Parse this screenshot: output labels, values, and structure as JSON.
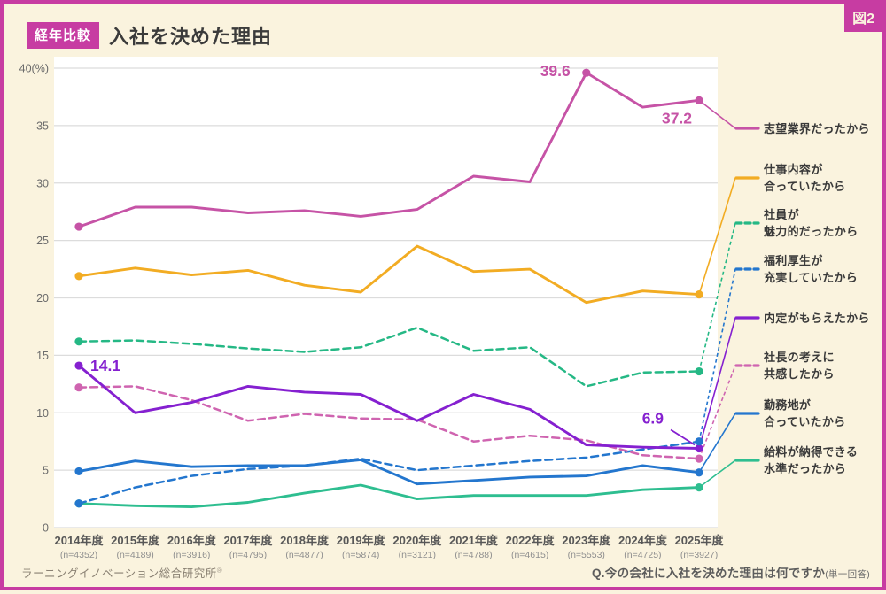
{
  "figure_label": "図2",
  "header": {
    "badge": "経年比較",
    "title": "入社を決めた理由"
  },
  "footer": {
    "source": "ラーニングイノベーション総合研究所",
    "source_mark": "®",
    "question": "Q.今の会社に入社を決めた理由は何ですか",
    "question_note": "(単一回答)"
  },
  "colors": {
    "border": "#C73CA2",
    "background": "#FAF3DE",
    "plot_background": "#FFFFFF",
    "gridline": "#DCDCDC",
    "axis_text": "#6B6B6B",
    "xaxis_text": "#575757",
    "n_text": "#8F8F8F"
  },
  "chart_data": {
    "type": "line",
    "title": "入社を決めた理由（経年比較）",
    "unit": "%",
    "ylim": [
      0,
      40
    ],
    "yticks": [
      0,
      5,
      10,
      15,
      20,
      25,
      30,
      35
    ],
    "ytick_top_label": "40(%)",
    "grid": "horizontal",
    "legend_position": "right",
    "categories": [
      "2014年度",
      "2015年度",
      "2016年度",
      "2017年度",
      "2018年度",
      "2019年度",
      "2020年度",
      "2021年度",
      "2022年度",
      "2023年度",
      "2024年度",
      "2025年度"
    ],
    "sample_sizes": [
      "(n=4352)",
      "(n=4189)",
      "(n=3916)",
      "(n=4795)",
      "(n=4877)",
      "(n=5874)",
      "(n=3121)",
      "(n=4788)",
      "(n=4615)",
      "(n=5553)",
      "(n=4725)",
      "(n=3927)"
    ],
    "series": [
      {
        "name": "志望業界だったから",
        "legend_lines": [
          "志望業界だったから"
        ],
        "color": "#C653A6",
        "dashed": false,
        "values": [
          26.2,
          27.9,
          27.9,
          27.4,
          27.6,
          27.1,
          27.7,
          30.6,
          30.1,
          39.6,
          36.6,
          37.2
        ],
        "annotations": [
          {
            "index": 9,
            "text": "39.6",
            "dx": -18,
            "dy": 4,
            "anchor": "end"
          },
          {
            "index": 11,
            "text": "37.2",
            "dx": -8,
            "dy": 26,
            "anchor": "end"
          }
        ]
      },
      {
        "name": "仕事内容が合っていたから",
        "legend_lines": [
          "仕事内容が",
          "合っていたから"
        ],
        "color": "#F2AC23",
        "dashed": false,
        "values": [
          21.9,
          22.6,
          22.0,
          22.4,
          21.1,
          20.5,
          24.5,
          22.3,
          22.5,
          19.6,
          20.6,
          20.3
        ],
        "annotations": []
      },
      {
        "name": "社員が魅力的だったから",
        "legend_lines": [
          "社員が",
          "魅力的だったから"
        ],
        "color": "#25B885",
        "dashed": true,
        "values": [
          16.2,
          16.3,
          16.0,
          15.6,
          15.3,
          15.7,
          17.4,
          15.4,
          15.7,
          12.3,
          13.5,
          13.6
        ],
        "annotations": []
      },
      {
        "name": "福利厚生が充実していたから",
        "legend_lines": [
          "福利厚生が",
          "充実していたから"
        ],
        "color": "#2376CE",
        "dashed": true,
        "values": [
          2.1,
          3.5,
          4.5,
          5.1,
          5.4,
          6.0,
          5.0,
          5.4,
          5.8,
          6.1,
          6.8,
          7.5
        ],
        "annotations": []
      },
      {
        "name": "内定がもらえたから",
        "legend_lines": [
          "内定がもらえたから"
        ],
        "color": "#8520D0",
        "dashed": false,
        "values": [
          14.1,
          10.0,
          10.9,
          12.3,
          11.8,
          11.6,
          9.3,
          11.6,
          10.3,
          7.2,
          7.0,
          6.9
        ],
        "annotations": [
          {
            "index": 0,
            "text": "14.1",
            "dx": 13,
            "dy": 6,
            "anchor": "start"
          },
          {
            "index": 11,
            "text": "6.9",
            "dx": -40,
            "dy": -28,
            "anchor": "end",
            "leader": true
          }
        ]
      },
      {
        "name": "社長の考えに共感したから",
        "legend_lines": [
          "社長の考えに",
          "共感したから"
        ],
        "color": "#CF64B0",
        "dashed": true,
        "values": [
          12.2,
          12.3,
          11.1,
          9.3,
          9.9,
          9.5,
          9.4,
          7.5,
          8.0,
          7.6,
          6.3,
          6.0
        ],
        "annotations": []
      },
      {
        "name": "勤務地が合っていたから",
        "legend_lines": [
          "勤務地が",
          "合っていたから"
        ],
        "color": "#2376CE",
        "dashed": false,
        "values": [
          4.9,
          5.8,
          5.3,
          5.4,
          5.4,
          5.9,
          3.8,
          4.1,
          4.4,
          4.5,
          5.4,
          4.8
        ],
        "annotations": []
      },
      {
        "name": "給料が納得できる水準だったから",
        "legend_lines": [
          "給料が納得できる",
          "水準だったから"
        ],
        "color": "#2EBE90",
        "dashed": false,
        "values": [
          2.1,
          1.9,
          1.8,
          2.2,
          3.0,
          3.7,
          2.5,
          2.8,
          2.8,
          2.8,
          3.3,
          3.5
        ],
        "annotations": []
      }
    ]
  }
}
